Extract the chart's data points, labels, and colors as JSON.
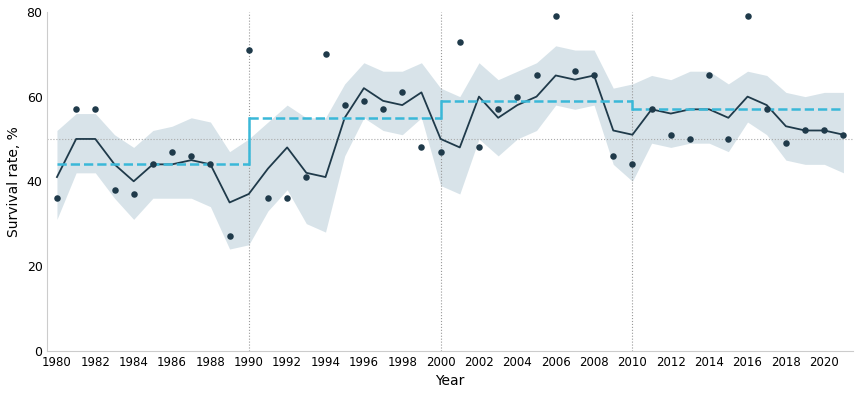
{
  "years": [
    1980,
    1981,
    1982,
    1983,
    1984,
    1985,
    1986,
    1987,
    1988,
    1989,
    1990,
    1991,
    1992,
    1993,
    1994,
    1995,
    1996,
    1997,
    1998,
    1999,
    2000,
    2001,
    2002,
    2003,
    2004,
    2005,
    2006,
    2007,
    2008,
    2009,
    2010,
    2011,
    2012,
    2013,
    2014,
    2015,
    2016,
    2017,
    2018,
    2019,
    2020,
    2021
  ],
  "smooth_line": [
    41,
    50,
    50,
    44,
    40,
    44,
    44,
    45,
    44,
    35,
    37,
    43,
    48,
    42,
    41,
    55,
    62,
    59,
    58,
    61,
    50,
    48,
    60,
    55,
    58,
    60,
    65,
    64,
    65,
    52,
    51,
    57,
    56,
    57,
    57,
    55,
    60,
    58,
    53,
    52,
    52,
    51
  ],
  "ci_upper": [
    52,
    56,
    56,
    51,
    48,
    52,
    53,
    55,
    54,
    47,
    50,
    54,
    58,
    55,
    55,
    63,
    68,
    66,
    66,
    68,
    62,
    60,
    68,
    64,
    66,
    68,
    72,
    71,
    71,
    62,
    63,
    65,
    64,
    66,
    66,
    63,
    66,
    65,
    61,
    60,
    61,
    61
  ],
  "ci_lower": [
    31,
    42,
    42,
    36,
    31,
    36,
    36,
    36,
    34,
    24,
    25,
    33,
    38,
    30,
    28,
    46,
    55,
    52,
    51,
    55,
    39,
    37,
    50,
    46,
    50,
    52,
    58,
    57,
    58,
    44,
    40,
    49,
    48,
    49,
    49,
    47,
    54,
    51,
    45,
    44,
    44,
    42
  ],
  "scatter_years": [
    1980,
    1981,
    1982,
    1983,
    1984,
    1985,
    1986,
    1987,
    1988,
    1989,
    1990,
    1991,
    1992,
    1993,
    1994,
    1995,
    1996,
    1997,
    1998,
    1999,
    2000,
    2001,
    2002,
    2003,
    2004,
    2005,
    2006,
    2007,
    2008,
    2009,
    2010,
    2011,
    2012,
    2013,
    2014,
    2015,
    2016,
    2017,
    2018,
    2019,
    2020,
    2021
  ],
  "scatter_vals": [
    36,
    57,
    57,
    38,
    37,
    44,
    47,
    46,
    44,
    27,
    71,
    36,
    36,
    41,
    70,
    58,
    59,
    57,
    61,
    48,
    47,
    73,
    48,
    57,
    60,
    65,
    79,
    66,
    65,
    46,
    44,
    57,
    51,
    50,
    65,
    50,
    79,
    57,
    49,
    52,
    52,
    51
  ],
  "period1_start": 1980,
  "period1_end": 1990,
  "period1_value": 44,
  "period2_start": 1990,
  "period2_end": 2000,
  "period2_value": 55,
  "period3_start": 2000,
  "period3_end": 2010,
  "period3_value": 59,
  "period4_start": 2010,
  "period4_end": 2021,
  "period4_value": 57,
  "vline_years": [
    1990,
    2000,
    2010
  ],
  "hline_y": 50,
  "ylabel": "Survival rate, %",
  "xlabel": "Year",
  "ylim": [
    0,
    80
  ],
  "yticks": [
    0,
    20,
    40,
    60,
    80
  ],
  "xlim": [
    1979.5,
    2021.5
  ],
  "line_color": "#1f3a4a",
  "scatter_color": "#1f3a4a",
  "ci_color": "#b8cdd8",
  "dashed_color": "#3ab8d8",
  "vline_color": "#999999",
  "hline_color": "#aaaaaa",
  "bg_color": "#ffffff"
}
